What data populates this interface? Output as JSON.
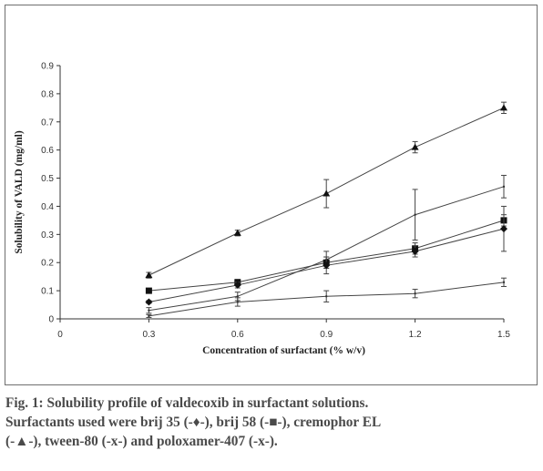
{
  "chart_data": {
    "type": "line",
    "xlabel": "Concentration of surfactant (% w/v)",
    "ylabel": "Solubility of VALD (mg/ml)",
    "xlim": [
      0,
      1.5
    ],
    "ylim": [
      0,
      0.9
    ],
    "x_ticks": [
      "0",
      "0.3",
      "0.6",
      "0.9",
      "1.2",
      "1.5"
    ],
    "y_ticks": [
      "0",
      "0.1",
      "0.2",
      "0.3",
      "0.4",
      "0.5",
      "0.6",
      "0.7",
      "0.8",
      "0.9"
    ],
    "grid": false,
    "series": [
      {
        "name": "cremophor EL",
        "marker": "triangle",
        "x": [
          0.3,
          0.6,
          0.9,
          1.2,
          1.5
        ],
        "y": [
          0.155,
          0.305,
          0.445,
          0.61,
          0.75
        ],
        "err": [
          0.01,
          0.01,
          0.05,
          0.02,
          0.02
        ]
      },
      {
        "name": "tween-80",
        "marker": "none",
        "x": [
          0.3,
          0.6,
          0.9,
          1.2,
          1.5
        ],
        "y": [
          0.03,
          0.08,
          0.21,
          0.37,
          0.47
        ],
        "err": [
          0.01,
          0.015,
          0.03,
          0.09,
          0.04
        ]
      },
      {
        "name": "brij 58",
        "marker": "square",
        "x": [
          0.3,
          0.6,
          0.9,
          1.2,
          1.5
        ],
        "y": [
          0.1,
          0.13,
          0.2,
          0.25,
          0.35
        ],
        "err": [
          0.005,
          0.01,
          0.02,
          0.02,
          0.02
        ]
      },
      {
        "name": "brij 35",
        "marker": "diamond",
        "x": [
          0.3,
          0.6,
          0.9,
          1.2,
          1.5
        ],
        "y": [
          0.06,
          0.12,
          0.19,
          0.24,
          0.32
        ],
        "err": [
          0.005,
          0.01,
          0.03,
          0.02,
          0.08
        ]
      },
      {
        "name": "poloxamer-407",
        "marker": "none",
        "x": [
          0.3,
          0.6,
          0.9,
          1.2,
          1.5
        ],
        "y": [
          0.01,
          0.06,
          0.08,
          0.09,
          0.13
        ],
        "err": [
          0.005,
          0.015,
          0.02,
          0.015,
          0.015
        ]
      }
    ]
  },
  "caption": {
    "line1": "Fig. 1: Solubility profile of valdecoxib in surfactant solutions.",
    "line2": "Surfactants used were brij 35 (-♦-), brij 58 (-■-), cremophor EL",
    "line3": "(-▲-), tween-80 (-x-) and poloxamer-407 (-x-)."
  }
}
